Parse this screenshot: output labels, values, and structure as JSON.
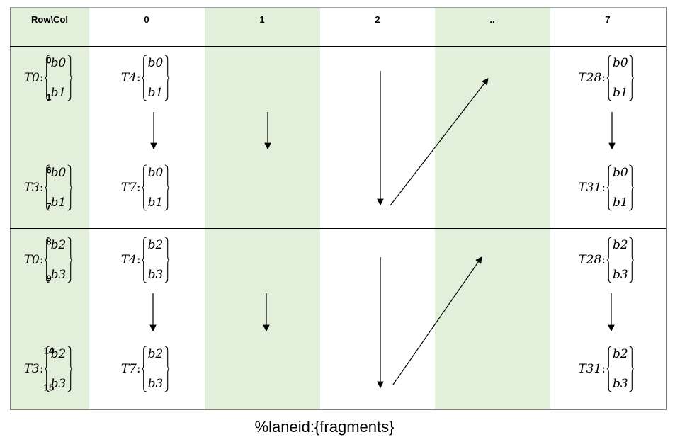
{
  "header": [
    "Row\\Col",
    "0",
    "1",
    "2",
    "..",
    "7"
  ],
  "row_labels": [
    [
      "0",
      "1",
      "6",
      "7"
    ],
    [
      "8",
      "9",
      "14",
      "15"
    ]
  ],
  "blocks": [
    {
      "entries": [
        {
          "col": 0,
          "pos": "top",
          "thread": "T0",
          "frags": [
            "b0",
            "b1"
          ]
        },
        {
          "col": 1,
          "pos": "top",
          "thread": "T4",
          "frags": [
            "b0",
            "b1"
          ]
        },
        {
          "col": 5,
          "pos": "top",
          "thread": "T28",
          "frags": [
            "b0",
            "b1"
          ]
        },
        {
          "col": 0,
          "pos": "bottom",
          "thread": "T3",
          "frags": [
            "b0",
            "b1"
          ]
        },
        {
          "col": 1,
          "pos": "bottom",
          "thread": "T7",
          "frags": [
            "b0",
            "b1"
          ]
        },
        {
          "col": 5,
          "pos": "bottom",
          "thread": "T31",
          "frags": [
            "b0",
            "b1"
          ]
        }
      ]
    },
    {
      "entries": [
        {
          "col": 0,
          "pos": "top",
          "thread": "T0",
          "frags": [
            "b2",
            "b3"
          ]
        },
        {
          "col": 1,
          "pos": "top",
          "thread": "T4",
          "frags": [
            "b2",
            "b3"
          ]
        },
        {
          "col": 5,
          "pos": "top",
          "thread": "T28",
          "frags": [
            "b2",
            "b3"
          ]
        },
        {
          "col": 0,
          "pos": "bottom",
          "thread": "T3",
          "frags": [
            "b2",
            "b3"
          ]
        },
        {
          "col": 1,
          "pos": "bottom",
          "thread": "T7",
          "frags": [
            "b2",
            "b3"
          ]
        },
        {
          "col": 5,
          "pos": "bottom",
          "thread": "T31",
          "frags": [
            "b2",
            "b3"
          ]
        }
      ]
    }
  ],
  "caption": "%laneid:{fragments}",
  "colors": {
    "shade": "#e2efda",
    "line": "#000000"
  }
}
